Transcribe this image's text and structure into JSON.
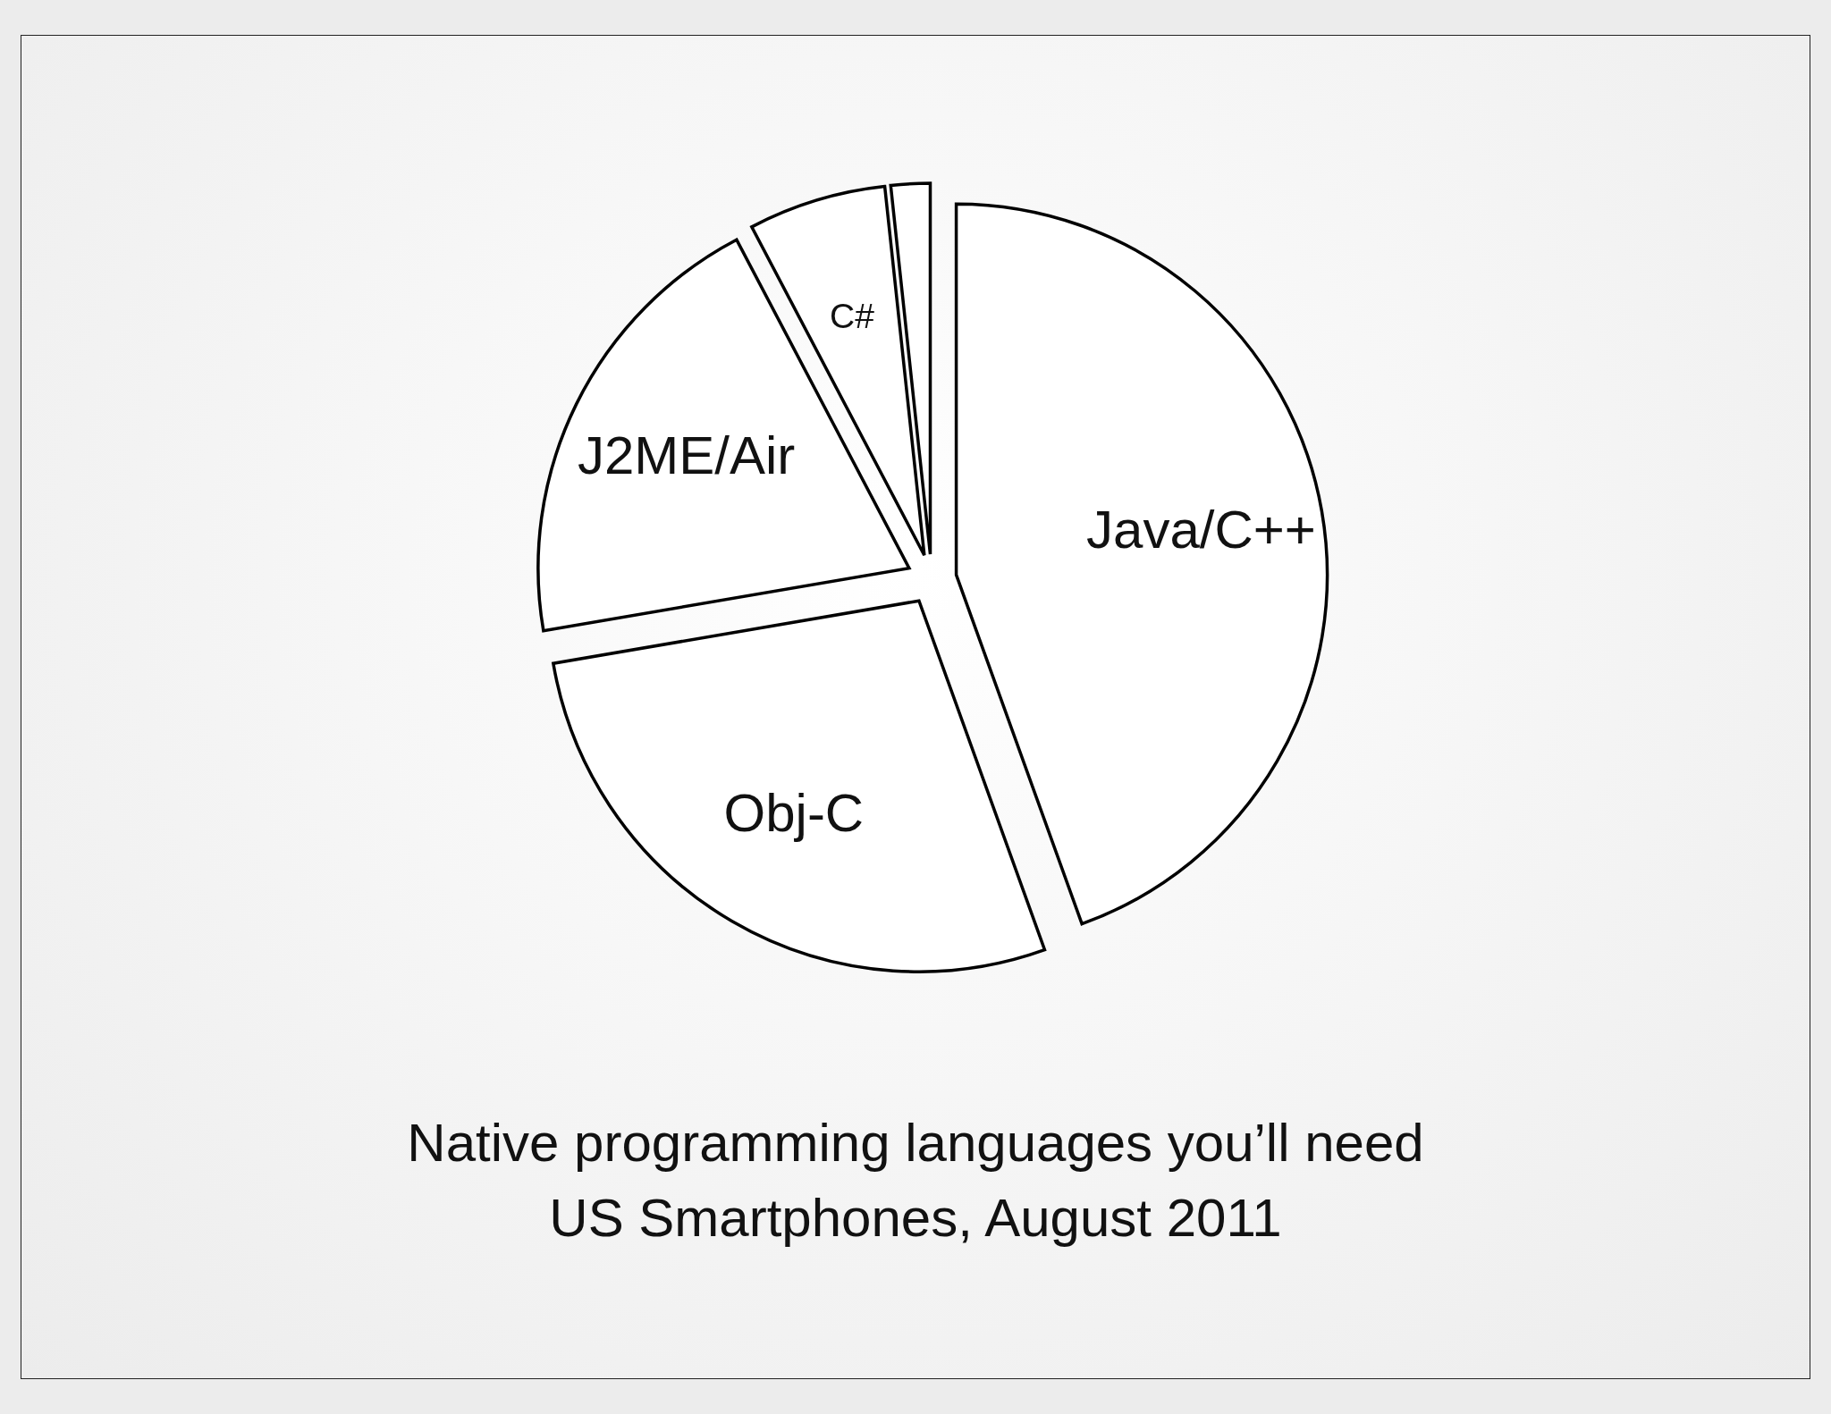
{
  "chart_data": {
    "type": "pie",
    "title": "Native programming languages you’ll need",
    "subtitle": "US Smartphones, August 2011",
    "categories": [
      "Java/C++",
      "Obj-C",
      "J2ME/Air",
      "C#",
      null
    ],
    "values": [
      44.5,
      27.8,
      20,
      6,
      1.7
    ],
    "colors": [
      "#ffffff",
      "#ffffff",
      "#ffffff",
      "#ffffff",
      "#ffffff"
    ]
  }
}
